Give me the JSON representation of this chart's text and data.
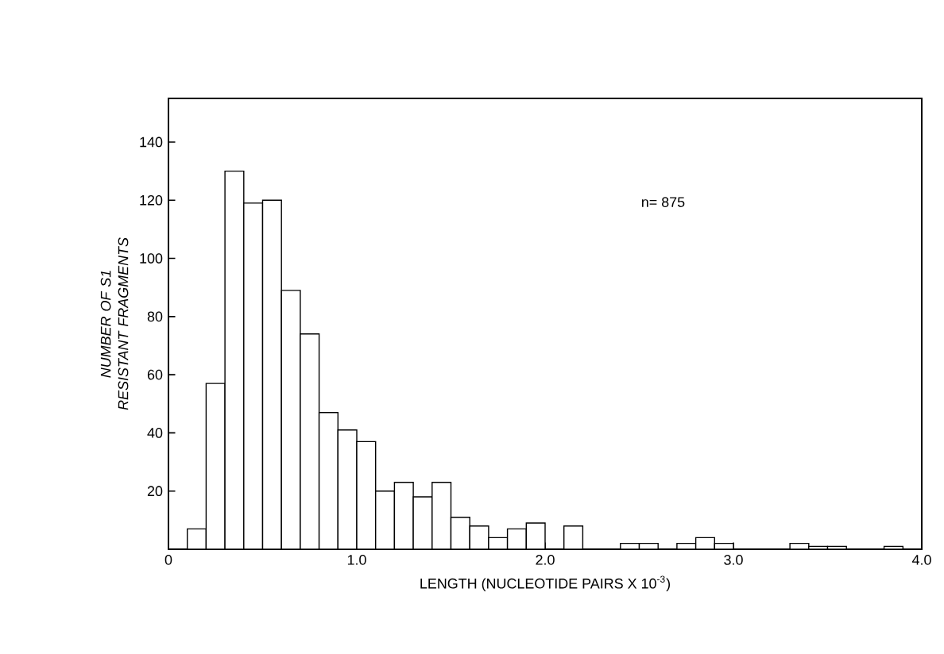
{
  "chart_data": {
    "type": "histogram",
    "xlabel": "LENGTH (NUCLEOTIDE PAIRS X 10$^{-3}$)",
    "ylabel": "NUMBER OF S1 RESISTANT FRAGMENTS",
    "bins": [
      0,
      0.1,
      0.2,
      0.3,
      0.4,
      0.5,
      0.6,
      0.7,
      0.8,
      0.9,
      1.0,
      1.1,
      1.2,
      1.3,
      1.4,
      1.5,
      1.6,
      1.7,
      1.8,
      1.9,
      2.0,
      2.1,
      2.2,
      2.3,
      2.4,
      2.5,
      2.6,
      2.7,
      2.8,
      2.9,
      3.0,
      3.1,
      3.2,
      3.3,
      3.4,
      3.5,
      3.6,
      3.7,
      3.8,
      3.9,
      4.0
    ],
    "values": [
      0,
      7,
      57,
      130,
      119,
      120,
      89,
      74,
      47,
      41,
      37,
      20,
      23,
      18,
      23,
      11,
      8,
      4,
      7,
      9,
      0,
      8,
      0,
      0,
      2,
      2,
      0,
      2,
      4,
      2,
      0,
      0,
      0,
      2,
      1,
      1,
      0,
      0,
      1,
      0
    ],
    "color": "#ffffff",
    "xlim": [
      0,
      4.0
    ],
    "ylim": [
      0,
      155
    ],
    "xticks": [
      0,
      {
        "value": 1.0,
        "label": "1.0"
      },
      {
        "value": 2.0,
        "label": "2.0"
      },
      {
        "value": 3.0,
        "label": "3.0"
      },
      {
        "value": 4.0,
        "label": "4.0"
      }
    ],
    "yticks": [
      20,
      40,
      60,
      80,
      100,
      120,
      140
    ],
    "annotations": [
      "n= 875"
    ],
    "grid": false
  }
}
